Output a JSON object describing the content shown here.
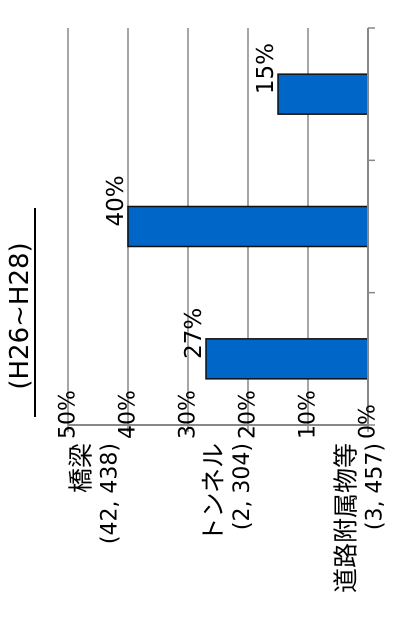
{
  "chart_data": {
    "type": "bar",
    "orientation": "rotated-90-ccw",
    "title": "(H26~H28)",
    "categories": [
      {
        "name": "橋梁",
        "count": "(42, 438)"
      },
      {
        "name": "トンネル",
        "count": "(2, 304)"
      },
      {
        "name": "道路附属物等",
        "count": "(3, 457)"
      }
    ],
    "values": [
      15,
      40,
      27
    ],
    "data_labels": [
      "15%",
      "40%",
      "27%"
    ],
    "ylim": [
      0,
      50
    ],
    "yticks": [
      "0%",
      "10%",
      "20%",
      "30%",
      "40%",
      "50%"
    ],
    "grid": true,
    "bar_color": "#0066c8",
    "grid_color": "#a6a6a6"
  }
}
